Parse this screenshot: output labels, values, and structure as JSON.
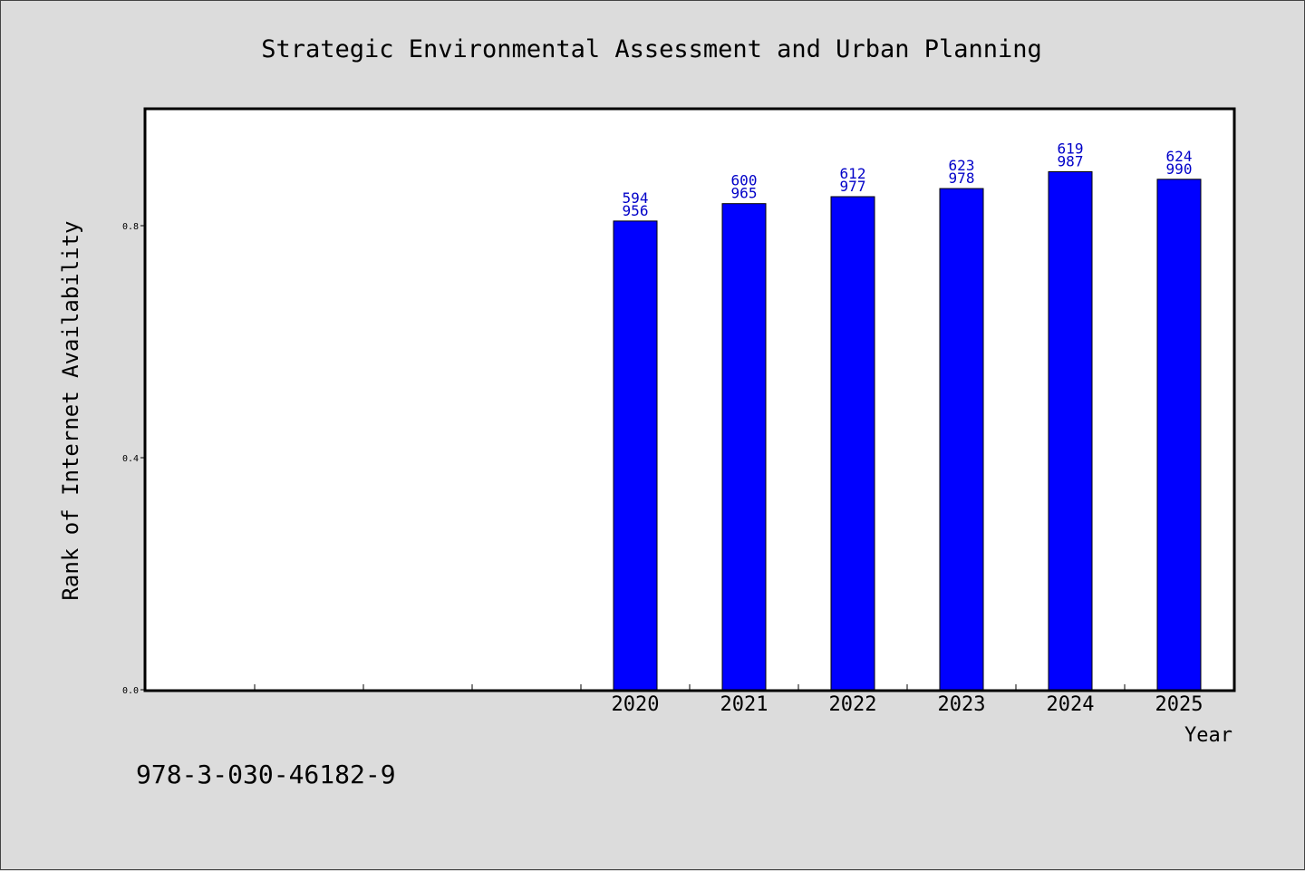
{
  "chart_data": {
    "type": "bar",
    "title": "Strategic Environmental Assessment and Urban Planning",
    "xlabel": "Year",
    "ylabel": "Rank of Internet Availability",
    "categories": [
      "",
      "",
      "",
      "",
      "2020",
      "2021",
      "2022",
      "2023",
      "2024",
      "2025"
    ],
    "values": [
      null,
      null,
      null,
      null,
      0.808,
      0.838,
      0.85,
      0.864,
      0.893,
      0.88
    ],
    "bar_labels": [
      null,
      null,
      null,
      null,
      [
        "594",
        "956"
      ],
      [
        "600",
        "965"
      ],
      [
        "612",
        "977"
      ],
      [
        "623",
        "978"
      ],
      [
        "619",
        "987"
      ],
      [
        "624",
        "990"
      ]
    ],
    "ylim": [
      0.0,
      1.0
    ],
    "yticks": [
      0.0,
      0.4,
      0.8
    ],
    "ytick_labels": [
      "0.0",
      "0.4",
      "0.8"
    ],
    "bar_color": "#0000ff",
    "label_color": "#0000c8",
    "grid": false
  },
  "footer_text": "978-3-030-46182-9"
}
